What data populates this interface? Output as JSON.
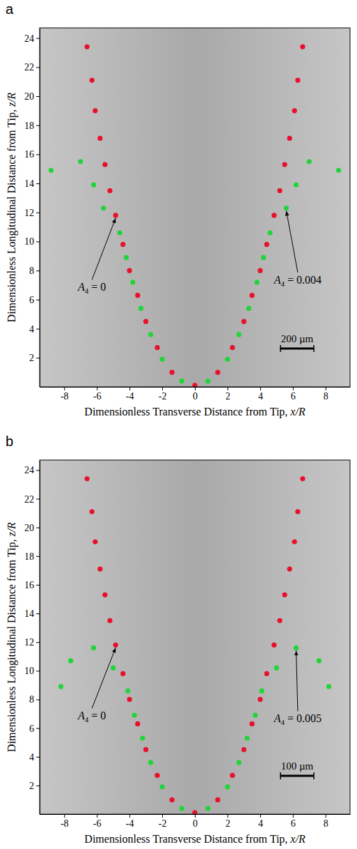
{
  "chart_data": [
    {
      "type": "scatter",
      "title": "a",
      "x_label": "Dimensionless Transverse Distance from Tip, x/R",
      "y_label": "Dimensionless Longitudinal Distance from Tip, z/R",
      "xlim": [
        -9.5,
        9.5
      ],
      "ylim": [
        0,
        24.7
      ],
      "xticks": [
        -8,
        -6,
        -4,
        -2,
        0,
        2,
        4,
        6,
        8
      ],
      "yticks": [
        2,
        4,
        6,
        8,
        10,
        12,
        14,
        16,
        18,
        20,
        22,
        24
      ],
      "grid": false,
      "series": [
        {
          "color": "#e8102a",
          "marker": "circle",
          "x": [
            0,
            1.4,
            2.3,
            3.0,
            3.5,
            4.0,
            4.4,
            4.85,
            5.2,
            5.5,
            5.8,
            6.1,
            6.3,
            6.6,
            -1.4,
            -2.3,
            -3.0,
            -3.5,
            -4.0,
            -4.4,
            -4.85,
            -5.2,
            -5.5,
            -5.8,
            -6.1,
            -6.3,
            -6.6
          ],
          "y": [
            0.1,
            1.0,
            2.7,
            4.5,
            6.3,
            8.0,
            9.8,
            11.8,
            13.5,
            15.3,
            17.1,
            19.0,
            21.1,
            23.4,
            1.0,
            2.7,
            4.5,
            6.3,
            8.0,
            9.8,
            11.8,
            13.5,
            15.3,
            17.1,
            19.0,
            21.1,
            23.4
          ]
        },
        {
          "color": "#22d43a",
          "marker": "circle",
          "x": [
            0.8,
            2.0,
            2.7,
            3.3,
            3.8,
            4.2,
            4.6,
            5.6,
            6.2,
            7.0,
            8.8,
            -0.8,
            -2.0,
            -2.7,
            -3.3,
            -3.8,
            -4.2,
            -4.6,
            -5.6,
            -6.2,
            -7.0,
            -8.8
          ],
          "y": [
            0.4,
            1.9,
            3.6,
            5.4,
            7.2,
            8.9,
            10.6,
            12.3,
            13.9,
            15.5,
            14.9,
            0.4,
            1.9,
            3.6,
            5.4,
            7.2,
            8.9,
            10.6,
            12.3,
            13.9,
            15.5,
            14.9
          ]
        }
      ],
      "annotations": [
        {
          "text": "A4 = 0",
          "x": -4.85,
          "y": 11.8
        },
        {
          "text": "A4 = 0.004",
          "x": 5.6,
          "y": 12.3
        }
      ],
      "scale_bar": "200 µm"
    },
    {
      "type": "scatter",
      "title": "b",
      "x_label": "Dimensionless Transverse Distance from Tip, x/R",
      "y_label": "Dimensionless Longitudinal Distance from Tip, z/R",
      "xlim": [
        -9.5,
        9.5
      ],
      "ylim": [
        0,
        24.7
      ],
      "xticks": [
        -8,
        -6,
        -4,
        -2,
        0,
        2,
        4,
        6,
        8
      ],
      "yticks": [
        2,
        4,
        6,
        8,
        10,
        12,
        14,
        16,
        18,
        20,
        22,
        24
      ],
      "grid": false,
      "series": [
        {
          "color": "#e8102a",
          "marker": "circle",
          "x": [
            0,
            1.4,
            2.3,
            3.0,
            3.5,
            4.0,
            4.4,
            4.85,
            5.2,
            5.5,
            5.8,
            6.1,
            6.3,
            6.6,
            -1.4,
            -2.3,
            -3.0,
            -3.5,
            -4.0,
            -4.4,
            -4.85,
            -5.2,
            -5.5,
            -5.8,
            -6.1,
            -6.3,
            -6.6
          ],
          "y": [
            0.1,
            1.0,
            2.7,
            4.5,
            6.3,
            8.0,
            9.8,
            11.8,
            13.5,
            15.3,
            17.1,
            19.0,
            21.1,
            23.4,
            1.0,
            2.7,
            4.5,
            6.3,
            8.0,
            9.8,
            11.8,
            13.5,
            15.3,
            17.1,
            19.0,
            21.1,
            23.4
          ]
        },
        {
          "color": "#22d43a",
          "marker": "circle",
          "x": [
            0.8,
            2.0,
            2.7,
            3.2,
            3.7,
            4.1,
            5.0,
            6.2,
            7.6,
            8.2,
            -0.8,
            -2.0,
            -2.7,
            -3.2,
            -3.7,
            -4.1,
            -5.0,
            -6.2,
            -7.6,
            -8.2
          ],
          "y": [
            0.4,
            1.9,
            3.6,
            5.3,
            6.9,
            8.6,
            10.2,
            11.6,
            10.7,
            8.9,
            0.4,
            1.9,
            3.6,
            5.3,
            6.9,
            8.6,
            10.2,
            11.6,
            10.7,
            8.9
          ]
        }
      ],
      "annotations": [
        {
          "text": "A4 = 0",
          "x": -4.85,
          "y": 11.8
        },
        {
          "text": "A4 = 0.005",
          "x": 6.2,
          "y": 11.6
        }
      ],
      "scale_bar": "100 µm"
    }
  ]
}
